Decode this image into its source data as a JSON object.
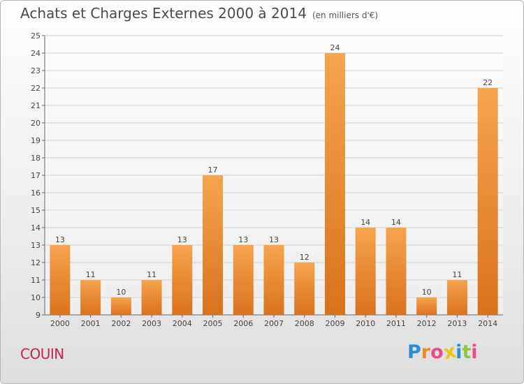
{
  "header": {
    "title": "Achats et Charges Externes 2000 à 2014",
    "subtitle": "(en milliers d'€)"
  },
  "commune": "COUIN",
  "logo": {
    "letters": [
      "P",
      "r",
      "o",
      "x",
      "i",
      "t",
      "i"
    ],
    "colors": [
      "#2a8fd4",
      "#f08a1c",
      "#e94a8a",
      "#f0c419",
      "#2a8fd4",
      "#8cc63f",
      "#e94a8a"
    ]
  },
  "colors": {
    "bar_top": "#f7a44e",
    "bar_bottom": "#d8721d",
    "grid": "#d0d0d0",
    "axis": "#666666",
    "label": "#444444"
  },
  "chart_data": {
    "type": "bar",
    "categories": [
      "2000",
      "2001",
      "2002",
      "2003",
      "2004",
      "2005",
      "2006",
      "2007",
      "2008",
      "2009",
      "2010",
      "2011",
      "2012",
      "2013",
      "2014"
    ],
    "values": [
      13,
      11,
      10,
      11,
      13,
      17,
      13,
      13,
      12,
      24,
      14,
      14,
      10,
      11,
      22
    ],
    "ylim": [
      9,
      25
    ],
    "yticks": [
      9,
      10,
      11,
      12,
      13,
      14,
      15,
      16,
      17,
      18,
      19,
      20,
      21,
      22,
      23,
      24,
      25
    ],
    "grid": true
  }
}
